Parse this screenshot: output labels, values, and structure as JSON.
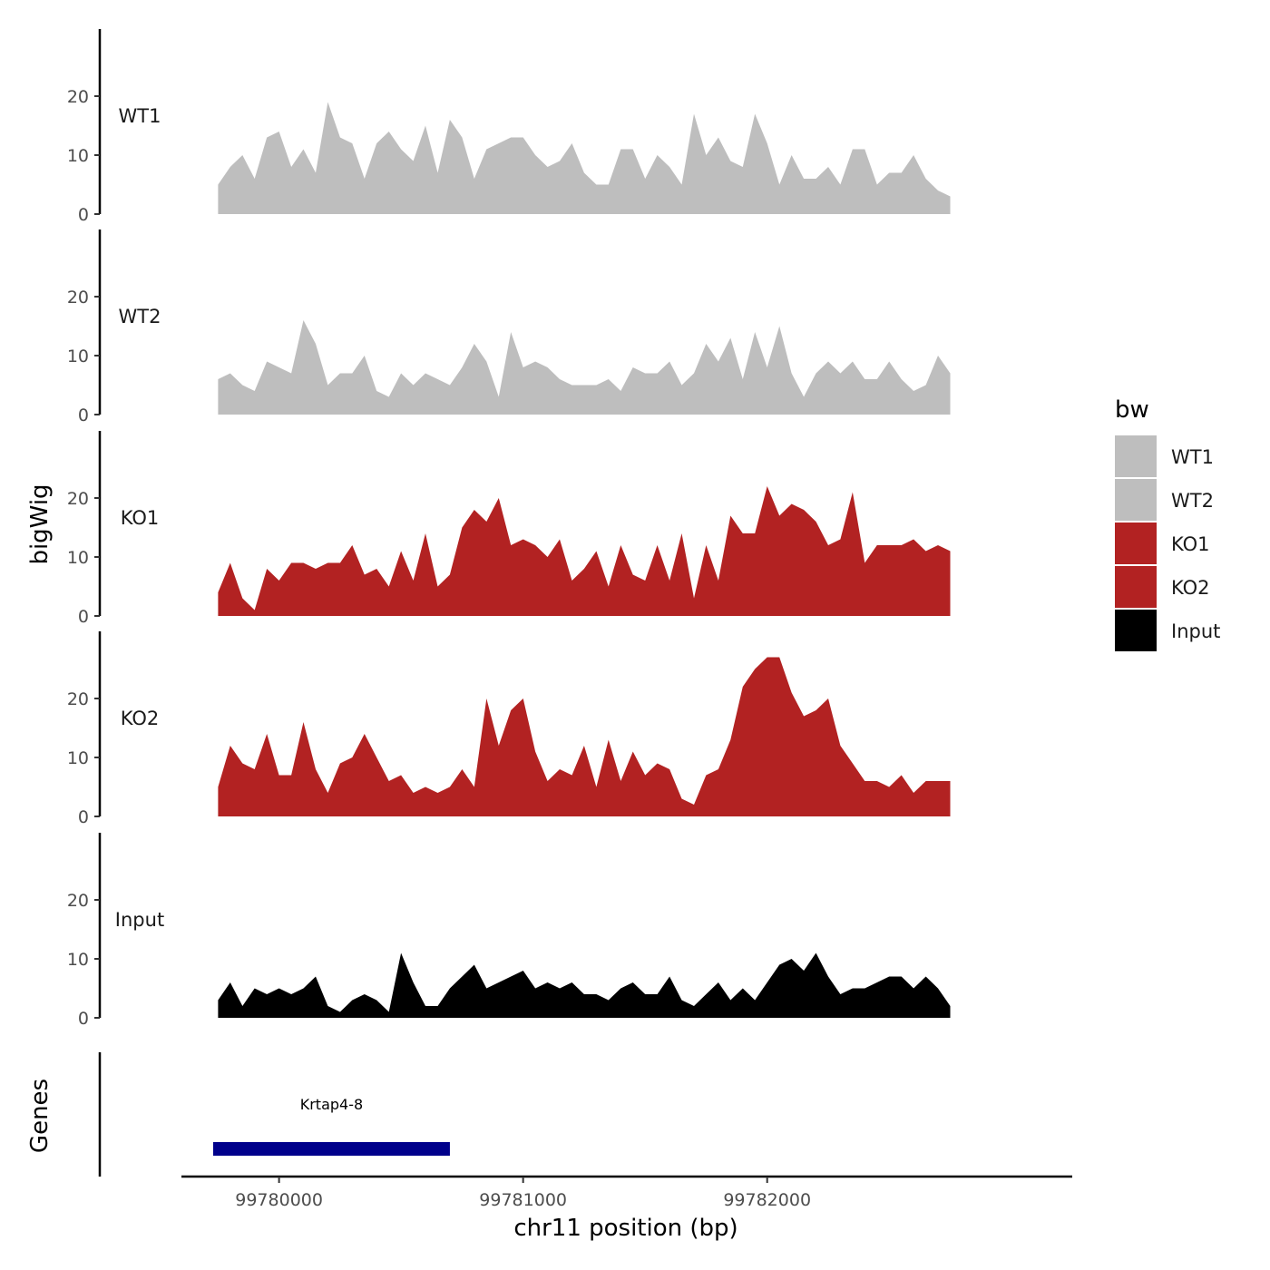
{
  "chart_data": {
    "type": "area",
    "panel_y_title": "bigWig",
    "genes_title": "Genes",
    "xlabel": "chr11 position (bp)",
    "xlim": [
      99779600,
      99783250
    ],
    "xticks": [
      99780000,
      99781000,
      99782000
    ],
    "x_tick_labels": [
      "99780000",
      "99781000",
      "99782000"
    ],
    "ylim": [
      0,
      30
    ],
    "yticks": [
      0,
      10,
      20
    ],
    "y_tick_labels": [
      "0",
      "10",
      "20"
    ],
    "legend": {
      "title": "bw",
      "position": "right",
      "entries": [
        {
          "label": "WT1",
          "color": "#bebebe"
        },
        {
          "label": "WT2",
          "color": "#bebebe"
        },
        {
          "label": "KO1",
          "color": "#b22222"
        },
        {
          "label": "KO2",
          "color": "#b22222"
        },
        {
          "label": "Input",
          "color": "#000000"
        }
      ]
    },
    "x_start": 99779750,
    "x_step": 50,
    "series": [
      {
        "name": "WT1",
        "color": "#bebebe",
        "values": [
          5,
          8,
          10,
          6,
          13,
          14,
          8,
          11,
          7,
          19,
          13,
          12,
          6,
          12,
          14,
          11,
          9,
          15,
          7,
          16,
          13,
          6,
          11,
          12,
          13,
          13,
          10,
          8,
          9,
          12,
          7,
          5,
          5,
          11,
          11,
          6,
          10,
          8,
          5,
          17,
          10,
          13,
          9,
          8,
          17,
          12,
          5,
          10,
          6,
          6,
          8,
          5,
          11,
          11,
          5,
          7,
          7,
          10,
          6,
          4,
          3
        ]
      },
      {
        "name": "WT2",
        "color": "#bebebe",
        "values": [
          6,
          7,
          5,
          4,
          9,
          8,
          7,
          16,
          12,
          5,
          7,
          7,
          10,
          4,
          3,
          7,
          5,
          7,
          6,
          5,
          8,
          12,
          9,
          3,
          14,
          8,
          9,
          8,
          6,
          5,
          5,
          5,
          6,
          4,
          8,
          7,
          7,
          9,
          5,
          7,
          12,
          9,
          13,
          6,
          14,
          8,
          15,
          7,
          3,
          7,
          9,
          7,
          9,
          6,
          6,
          9,
          6,
          4,
          5,
          10,
          7
        ]
      },
      {
        "name": "KO1",
        "color": "#b22222",
        "values": [
          4,
          9,
          3,
          1,
          8,
          6,
          9,
          9,
          8,
          9,
          9,
          12,
          7,
          8,
          5,
          11,
          6,
          14,
          5,
          7,
          15,
          18,
          16,
          20,
          12,
          13,
          12,
          10,
          13,
          6,
          8,
          11,
          5,
          12,
          7,
          6,
          12,
          6,
          14,
          3,
          12,
          6,
          17,
          14,
          14,
          22,
          17,
          19,
          18,
          16,
          12,
          13,
          21,
          9,
          12,
          12,
          12,
          13,
          11,
          12,
          11
        ]
      },
      {
        "name": "KO2",
        "color": "#b22222",
        "values": [
          5,
          12,
          9,
          8,
          14,
          7,
          7,
          16,
          8,
          4,
          9,
          10,
          14,
          10,
          6,
          7,
          4,
          5,
          4,
          5,
          8,
          5,
          20,
          12,
          18,
          20,
          11,
          6,
          8,
          7,
          12,
          5,
          13,
          6,
          11,
          7,
          9,
          8,
          3,
          2,
          7,
          8,
          13,
          22,
          25,
          27,
          27,
          21,
          17,
          18,
          20,
          12,
          9,
          6,
          6,
          5,
          7,
          4,
          6,
          6,
          6
        ]
      },
      {
        "name": "Input",
        "color": "#000000",
        "values": [
          3,
          6,
          2,
          5,
          4,
          5,
          4,
          5,
          7,
          2,
          1,
          3,
          4,
          3,
          1,
          11,
          6,
          2,
          2,
          5,
          7,
          9,
          5,
          6,
          7,
          8,
          5,
          6,
          5,
          6,
          4,
          4,
          3,
          5,
          6,
          4,
          4,
          7,
          3,
          2,
          4,
          6,
          3,
          5,
          3,
          6,
          9,
          10,
          8,
          11,
          7,
          4,
          5,
          5,
          6,
          7,
          7,
          5,
          7,
          5,
          2
        ]
      }
    ],
    "genes": [
      {
        "name": "Krtap4-8",
        "start": 99779730,
        "end": 99780700,
        "color": "#00008b"
      }
    ]
  }
}
